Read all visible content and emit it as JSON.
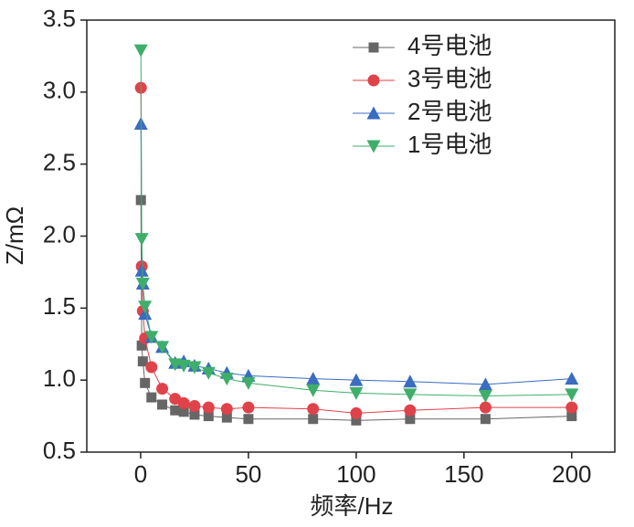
{
  "chart_data": {
    "type": "line",
    "x_label": "频率/Hz",
    "y_label": "Z/mΩ",
    "x": [
      0.1,
      0.5,
      1,
      2,
      5,
      10,
      16,
      20,
      25,
      31.5,
      40,
      50,
      80,
      100,
      125,
      160,
      200
    ],
    "series": [
      {
        "name": "4号电池",
        "color": "#666666",
        "marker": "square",
        "values": [
          2.25,
          1.24,
          1.13,
          0.98,
          0.88,
          0.83,
          0.79,
          0.78,
          0.76,
          0.75,
          0.74,
          0.73,
          0.73,
          0.72,
          0.73,
          0.73,
          0.75
        ]
      },
      {
        "name": "3号电池",
        "color": "#e0424a",
        "marker": "circle",
        "values": [
          3.03,
          1.79,
          1.48,
          1.29,
          1.09,
          0.94,
          0.87,
          0.84,
          0.82,
          0.81,
          0.8,
          0.81,
          0.8,
          0.77,
          0.79,
          0.81,
          0.81
        ]
      },
      {
        "name": "2号电池",
        "color": "#3a6cc0",
        "marker": "triangle-up",
        "values": [
          2.78,
          1.76,
          1.67,
          1.46,
          1.3,
          1.23,
          1.12,
          1.13,
          1.1,
          1.08,
          1.05,
          1.03,
          1.01,
          1.0,
          0.99,
          0.97,
          1.01
        ]
      },
      {
        "name": "1号电池",
        "color": "#3fae6a",
        "marker": "triangle-down",
        "values": [
          3.29,
          1.98,
          1.67,
          1.51,
          1.3,
          1.23,
          1.11,
          1.1,
          1.09,
          1.05,
          1.01,
          0.98,
          0.93,
          0.91,
          0.9,
          0.89,
          0.9
        ]
      }
    ],
    "xlim": [
      -25,
      220
    ],
    "xticks": [
      0,
      50,
      100,
      150,
      200
    ],
    "ylim": [
      0.5,
      3.5
    ],
    "yticks": [
      0.5,
      {
        "value": 1,
        "label": "1.0"
      },
      1.5,
      {
        "value": 2,
        "label": "2.0"
      },
      2.5,
      {
        "value": 3,
        "label": "3.0"
      },
      3.5
    ],
    "grid": false
  }
}
